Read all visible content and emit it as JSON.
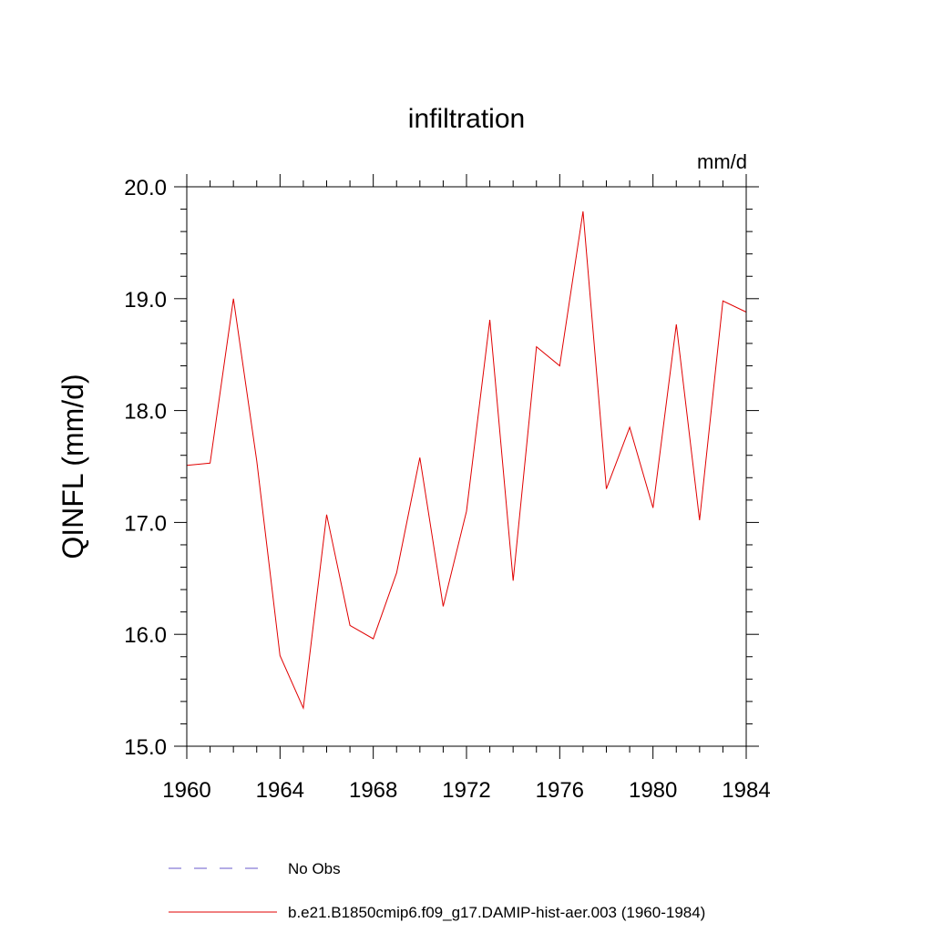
{
  "chart_data": {
    "type": "line",
    "title": "infiltration",
    "units_label": "mm/d",
    "ylabel": "QINFL  (mm/d)",
    "xlabel": "",
    "xlim": [
      1960,
      1984
    ],
    "ylim": [
      15.0,
      20.0
    ],
    "x_ticks": [
      1960,
      1964,
      1968,
      1972,
      1976,
      1980,
      1984
    ],
    "x_tick_labels": [
      "1960",
      "1964",
      "1968",
      "1972",
      "1976",
      "1980",
      "1984"
    ],
    "y_ticks": [
      15.0,
      16.0,
      17.0,
      18.0,
      19.0,
      20.0
    ],
    "y_tick_labels": [
      "15.0",
      "16.0",
      "17.0",
      "18.0",
      "19.0",
      "20.0"
    ],
    "grid": false,
    "legend_position": "bottom",
    "legend": [
      {
        "label": "No Obs",
        "color": "#6a5acd",
        "style": "dashed"
      },
      {
        "label": "b.e21.B1850cmip6.f09_g17.DAMIP-hist-aer.003 (1960-1984)",
        "color": "#e00000",
        "style": "solid"
      }
    ],
    "series": [
      {
        "name": "b.e21.B1850cmip6.f09_g17.DAMIP-hist-aer.003 (1960-1984)",
        "color": "#e00000",
        "x": [
          1960,
          1961,
          1962,
          1963,
          1964,
          1965,
          1966,
          1967,
          1968,
          1969,
          1970,
          1971,
          1972,
          1973,
          1974,
          1975,
          1976,
          1977,
          1978,
          1979,
          1980,
          1981,
          1982,
          1983,
          1984
        ],
        "values": [
          17.51,
          17.53,
          19.0,
          17.55,
          15.81,
          15.34,
          17.07,
          16.08,
          15.96,
          16.55,
          17.58,
          16.25,
          17.1,
          18.81,
          16.48,
          18.57,
          18.4,
          19.78,
          17.3,
          17.85,
          17.13,
          18.77,
          17.02,
          18.98,
          18.88
        ]
      }
    ]
  }
}
